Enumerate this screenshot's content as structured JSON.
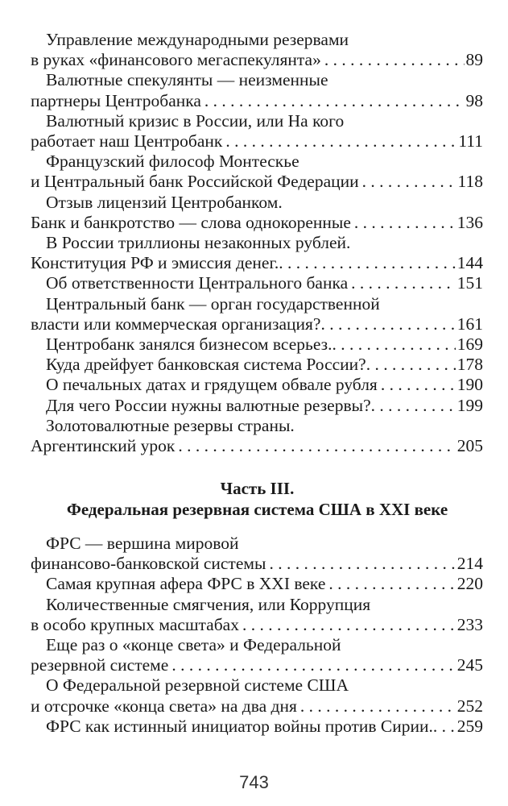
{
  "toc_part2_entries": [
    {
      "lines": [
        "Управление международными резервами",
        "в руках «финансового мегаспекулянта»"
      ],
      "page": "89"
    },
    {
      "lines": [
        "Валютные спекулянты — неизменные",
        "партнеры Центробанка"
      ],
      "page": "98"
    },
    {
      "lines": [
        "Валютный кризис в России, или На кого",
        "работает наш Центробанк"
      ],
      "page": "111"
    },
    {
      "lines": [
        "Французский философ Монтескье",
        "и Центральный банк Российской Федерации"
      ],
      "page": "118"
    },
    {
      "lines": [
        "Отзыв лицензий Центробанком.",
        "Банк и банкротство — слова однокоренные"
      ],
      "page": "136"
    },
    {
      "lines": [
        "В России триллионы незаконных рублей.",
        "Конституция РФ и эмиссия денег."
      ],
      "page": "144"
    },
    {
      "lines": [
        "Об ответственности Центрального банка"
      ],
      "page": "151"
    },
    {
      "lines": [
        "Центральный банк — орган государственной",
        "власти или коммерческая организация?"
      ],
      "page": "161"
    },
    {
      "lines": [
        "Центробанк занялся бизнесом всерьез."
      ],
      "page": "169"
    },
    {
      "lines": [
        "Куда дрейфует банковская система России?"
      ],
      "page": "178"
    },
    {
      "lines": [
        "О печальных датах и грядущем обвале рубля"
      ],
      "page": "190"
    },
    {
      "lines": [
        "Для чего России нужны валютные резервы?"
      ],
      "page": "199"
    },
    {
      "lines": [
        "Золотовалютные резервы страны.",
        "Аргентинский урок"
      ],
      "page": "205"
    }
  ],
  "part3": {
    "heading_line1": "Часть III.",
    "heading_line2": "Федеральная резервная система США в XXI веке"
  },
  "toc_part3_entries": [
    {
      "lines": [
        "ФРС — вершина мировой",
        "финансово-банковской системы"
      ],
      "page": "214"
    },
    {
      "lines": [
        "Самая крупная афера ФРС в XXI веке"
      ],
      "page": "220"
    },
    {
      "lines": [
        "Количественные смягчения, или Коррупция",
        "в особо крупных масштабах"
      ],
      "page": "233"
    },
    {
      "lines": [
        "Еще раз о «конце света» и Федеральной",
        "резервной системе"
      ],
      "page": "245"
    },
    {
      "lines": [
        "О Федеральной резервной системе США",
        "и отсрочке «конца света» на два дня"
      ],
      "page": "252"
    },
    {
      "lines": [
        "ФРС как истинный инициатор войны против Сирии."
      ],
      "page": "259"
    }
  ],
  "folio": "743"
}
